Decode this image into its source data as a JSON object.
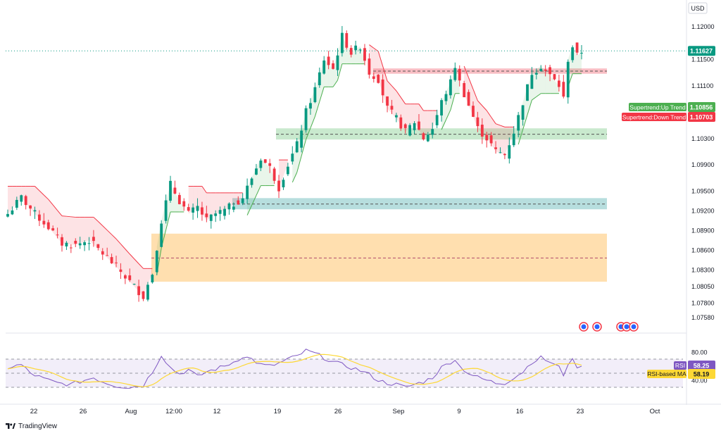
{
  "app": {
    "brand": "TradingView",
    "currency": "USD"
  },
  "chart_data": {
    "type": "candlestick",
    "x_axis": {
      "ticks": [
        "22",
        "26",
        "Aug",
        "12:00",
        "12",
        "19",
        "26",
        "Sep",
        "9",
        "16",
        "23",
        "Oct"
      ]
    },
    "price_axis": {
      "range": [
        1.0735,
        1.124
      ],
      "ticks": [
        "1.12000",
        "1.11500",
        "1.11100",
        "1.10300",
        "1.09900",
        "1.09500",
        "1.09200",
        "1.08900",
        "1.08600",
        "1.08300",
        "1.08050",
        "1.07800",
        "1.07580"
      ],
      "last_price": "1.11627",
      "last_price_value": 1.11627
    },
    "indicators": {
      "supertrend_up": {
        "label": "Supertrend:Up Trend",
        "value": "1.10856",
        "color": "#4caf50"
      },
      "supertrend_down": {
        "label": "Supertrend:Down Trend",
        "value": "1.10703",
        "color": "#f23645"
      }
    },
    "zones": [
      {
        "name": "resistance-zone",
        "low": 1.1128,
        "high": 1.1136,
        "mid": 1.1132,
        "color": "#f7a8b0"
      },
      {
        "name": "support-zone-1",
        "low": 1.1028,
        "high": 1.1045,
        "mid": 1.1036,
        "color": "#b7e1bd"
      },
      {
        "name": "support-zone-2",
        "low": 1.0922,
        "high": 1.0939,
        "mid": 1.093,
        "color": "#9fd3d3"
      },
      {
        "name": "demand-zone",
        "low": 1.0812,
        "high": 1.0885,
        "mid": 1.0848,
        "color": "#ffd9a1"
      }
    ],
    "candles": {
      "anchors": [
        [
          0,
          1.0915
        ],
        [
          3,
          1.094
        ],
        [
          6,
          1.0915
        ],
        [
          9,
          1.0895
        ],
        [
          12,
          1.087
        ],
        [
          15,
          1.0868
        ],
        [
          18,
          1.0875
        ],
        [
          21,
          1.0855
        ],
        [
          24,
          1.0835
        ],
        [
          27,
          1.0812
        ],
        [
          30,
          1.079
        ],
        [
          32,
          1.0825
        ],
        [
          34,
          1.0905
        ],
        [
          36,
          1.096
        ],
        [
          38,
          1.0935
        ],
        [
          40,
          1.0915
        ],
        [
          42,
          1.0925
        ],
        [
          44,
          1.0905
        ],
        [
          46,
          1.0915
        ],
        [
          48,
          1.092
        ],
        [
          50,
          1.093
        ],
        [
          52,
          1.094
        ],
        [
          54,
          1.097
        ],
        [
          56,
          1.1
        ],
        [
          58,
          1.0985
        ],
        [
          60,
          1.0955
        ],
        [
          62,
          1.099
        ],
        [
          64,
          1.102
        ],
        [
          66,
          1.107
        ],
        [
          68,
          1.1105
        ],
        [
          70,
          1.115
        ],
        [
          72,
          1.1135
        ],
        [
          74,
          1.1185
        ],
        [
          76,
          1.116
        ],
        [
          78,
          1.117
        ],
        [
          80,
          1.113
        ],
        [
          82,
          1.112
        ],
        [
          84,
          1.1075
        ],
        [
          86,
          1.106
        ],
        [
          88,
          1.104
        ],
        [
          90,
          1.1055
        ],
        [
          92,
          1.103
        ],
        [
          94,
          1.1045
        ],
        [
          96,
          1.1085
        ],
        [
          98,
          1.1115
        ],
        [
          99,
          1.114
        ],
        [
          100,
          1.1115
        ],
        [
          102,
          1.108
        ],
        [
          104,
          1.1045
        ],
        [
          106,
          1.103
        ],
        [
          108,
          1.101
        ],
        [
          110,
          1.1005
        ],
        [
          112,
          1.104
        ],
        [
          114,
          1.1085
        ],
        [
          116,
          1.113
        ],
        [
          118,
          1.114
        ],
        [
          120,
          1.1125
        ],
        [
          122,
          1.111
        ],
        [
          123,
          1.109
        ],
        [
          124,
          1.115
        ],
        [
          125,
          1.117
        ],
        [
          126,
          1.1155
        ],
        [
          127,
          1.1162
        ]
      ],
      "count": 128
    },
    "rsi": {
      "label": "RSI",
      "value": "58.25",
      "ma_label": "RSI-based MA",
      "ma_value": "58.19",
      "ticks": [
        "80.00",
        "40.00"
      ],
      "anchors": [
        [
          0,
          58
        ],
        [
          3,
          62
        ],
        [
          5,
          50
        ],
        [
          8,
          42
        ],
        [
          11,
          36
        ],
        [
          14,
          34
        ],
        [
          17,
          40
        ],
        [
          19,
          44
        ],
        [
          21,
          38
        ],
        [
          24,
          32
        ],
        [
          27,
          30
        ],
        [
          30,
          33
        ],
        [
          32,
          52
        ],
        [
          34,
          76
        ],
        [
          36,
          58
        ],
        [
          38,
          49
        ],
        [
          40,
          55
        ],
        [
          42,
          45
        ],
        [
          44,
          52
        ],
        [
          46,
          56
        ],
        [
          48,
          60
        ],
        [
          50,
          66
        ],
        [
          52,
          74
        ],
        [
          54,
          70
        ],
        [
          56,
          62
        ],
        [
          58,
          60
        ],
        [
          60,
          64
        ],
        [
          62,
          70
        ],
        [
          64,
          74
        ],
        [
          66,
          82
        ],
        [
          68,
          78
        ],
        [
          70,
          72
        ],
        [
          72,
          66
        ],
        [
          74,
          62
        ],
        [
          76,
          58
        ],
        [
          78,
          54
        ],
        [
          80,
          48
        ],
        [
          82,
          40
        ],
        [
          84,
          36
        ],
        [
          86,
          34
        ],
        [
          88,
          30
        ],
        [
          90,
          34
        ],
        [
          92,
          38
        ],
        [
          94,
          44
        ],
        [
          96,
          58
        ],
        [
          98,
          66
        ],
        [
          99,
          70
        ],
        [
          100,
          60
        ],
        [
          102,
          50
        ],
        [
          104,
          44
        ],
        [
          106,
          40
        ],
        [
          108,
          36
        ],
        [
          110,
          36
        ],
        [
          112,
          44
        ],
        [
          114,
          52
        ],
        [
          116,
          66
        ],
        [
          118,
          72
        ],
        [
          120,
          66
        ],
        [
          122,
          58
        ],
        [
          123,
          48
        ],
        [
          124,
          64
        ],
        [
          125,
          68
        ],
        [
          126,
          60
        ],
        [
          127,
          58
        ]
      ]
    }
  }
}
